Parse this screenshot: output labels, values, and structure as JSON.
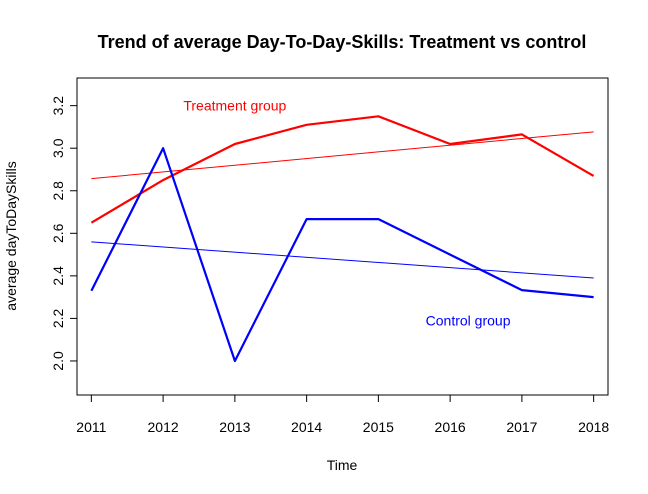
{
  "chart_data": {
    "type": "line",
    "title": "Trend of average Day-To-Day-Skills: Treatment vs control",
    "xlabel": "Time",
    "ylabel": "average dayToDaySkills",
    "x": [
      2011,
      2012,
      2013,
      2014,
      2015,
      2016,
      2017,
      2018
    ],
    "x_ticks": [
      "2011",
      "2012",
      "2013",
      "2014",
      "2015",
      "2016",
      "2017",
      "2018"
    ],
    "y_ticks": [
      "2.0",
      "2.2",
      "2.4",
      "2.6",
      "2.8",
      "3.0",
      "3.2"
    ],
    "xlim": [
      2010.8,
      2018.2
    ],
    "ylim": [
      1.84,
      3.33
    ],
    "grid": false,
    "legend": "none",
    "series": [
      {
        "key": "treatment",
        "color": "#ff0000",
        "values": [
          2.65,
          2.85,
          3.02,
          3.11,
          3.15,
          3.02,
          3.065,
          2.87
        ]
      },
      {
        "key": "control",
        "color": "#0000ff",
        "values": [
          2.33,
          3.0,
          2.0,
          2.667,
          2.667,
          2.5,
          2.333,
          2.3
        ]
      }
    ],
    "trend_lines": [
      {
        "key": "treatment-trend",
        "color": "#ff0000",
        "x": [
          2011,
          2018
        ],
        "values": [
          2.857,
          3.077
        ]
      },
      {
        "key": "control-trend",
        "color": "#0000ff",
        "x": [
          2011,
          2018
        ],
        "values": [
          2.56,
          2.39
        ]
      }
    ],
    "annotations": [
      {
        "key": "treatment-label",
        "text": "Treatment group",
        "color": "#ff0000",
        "x": 2013.0,
        "y": 3.2
      },
      {
        "key": "control-label",
        "text": "Control group",
        "color": "#0000ff",
        "x": 2016.25,
        "y": 2.19
      }
    ]
  }
}
